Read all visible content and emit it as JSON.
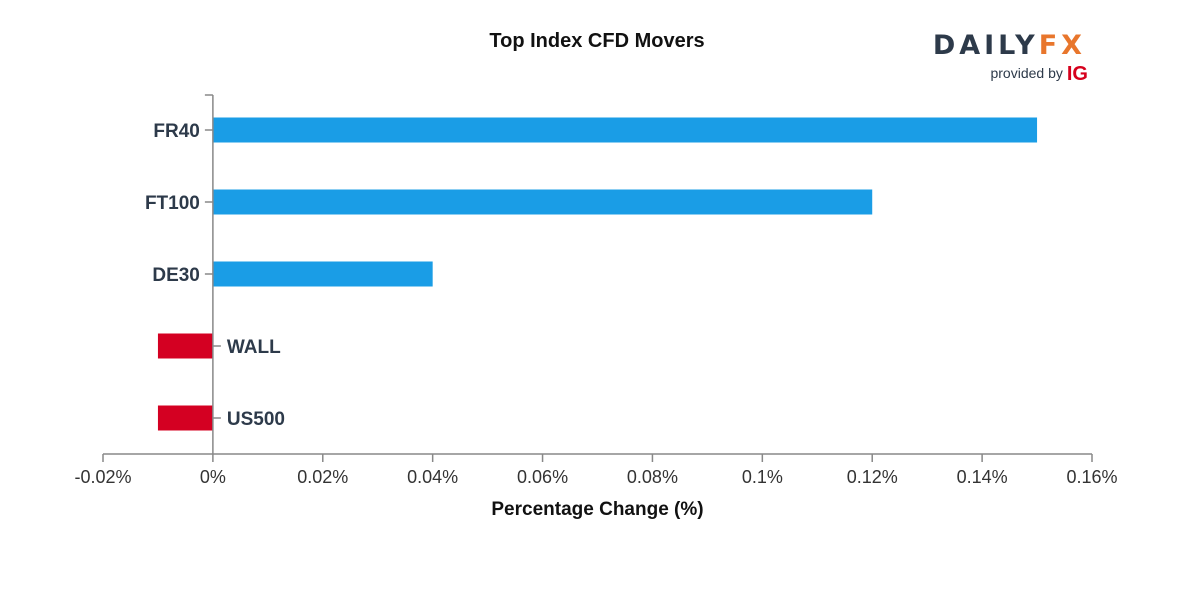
{
  "brand": {
    "daily": "DAILY",
    "fx": "FX",
    "provided_by": "provided by",
    "ig": "IG"
  },
  "chart_data": {
    "type": "bar",
    "orientation": "horizontal",
    "title": "Top Index CFD Movers",
    "xlabel": "Percentage Change (%)",
    "ylabel": "",
    "categories": [
      "FR40",
      "FT100",
      "DE30",
      "WALL",
      "US500"
    ],
    "values": [
      0.15,
      0.12,
      0.04,
      -0.01,
      -0.01
    ],
    "xlim": [
      -0.02,
      0.16
    ],
    "xticks": [
      -0.02,
      0,
      0.02,
      0.04,
      0.06,
      0.08,
      0.1,
      0.12,
      0.14,
      0.16
    ],
    "xtick_labels": [
      "-0.02%",
      "0%",
      "0.02%",
      "0.04%",
      "0.06%",
      "0.08%",
      "0.1%",
      "0.12%",
      "0.14%",
      "0.16%"
    ],
    "colors": {
      "positive": "#1a9de6",
      "negative": "#d40022",
      "axis": "#888888"
    },
    "grid": false,
    "legend": "none"
  }
}
